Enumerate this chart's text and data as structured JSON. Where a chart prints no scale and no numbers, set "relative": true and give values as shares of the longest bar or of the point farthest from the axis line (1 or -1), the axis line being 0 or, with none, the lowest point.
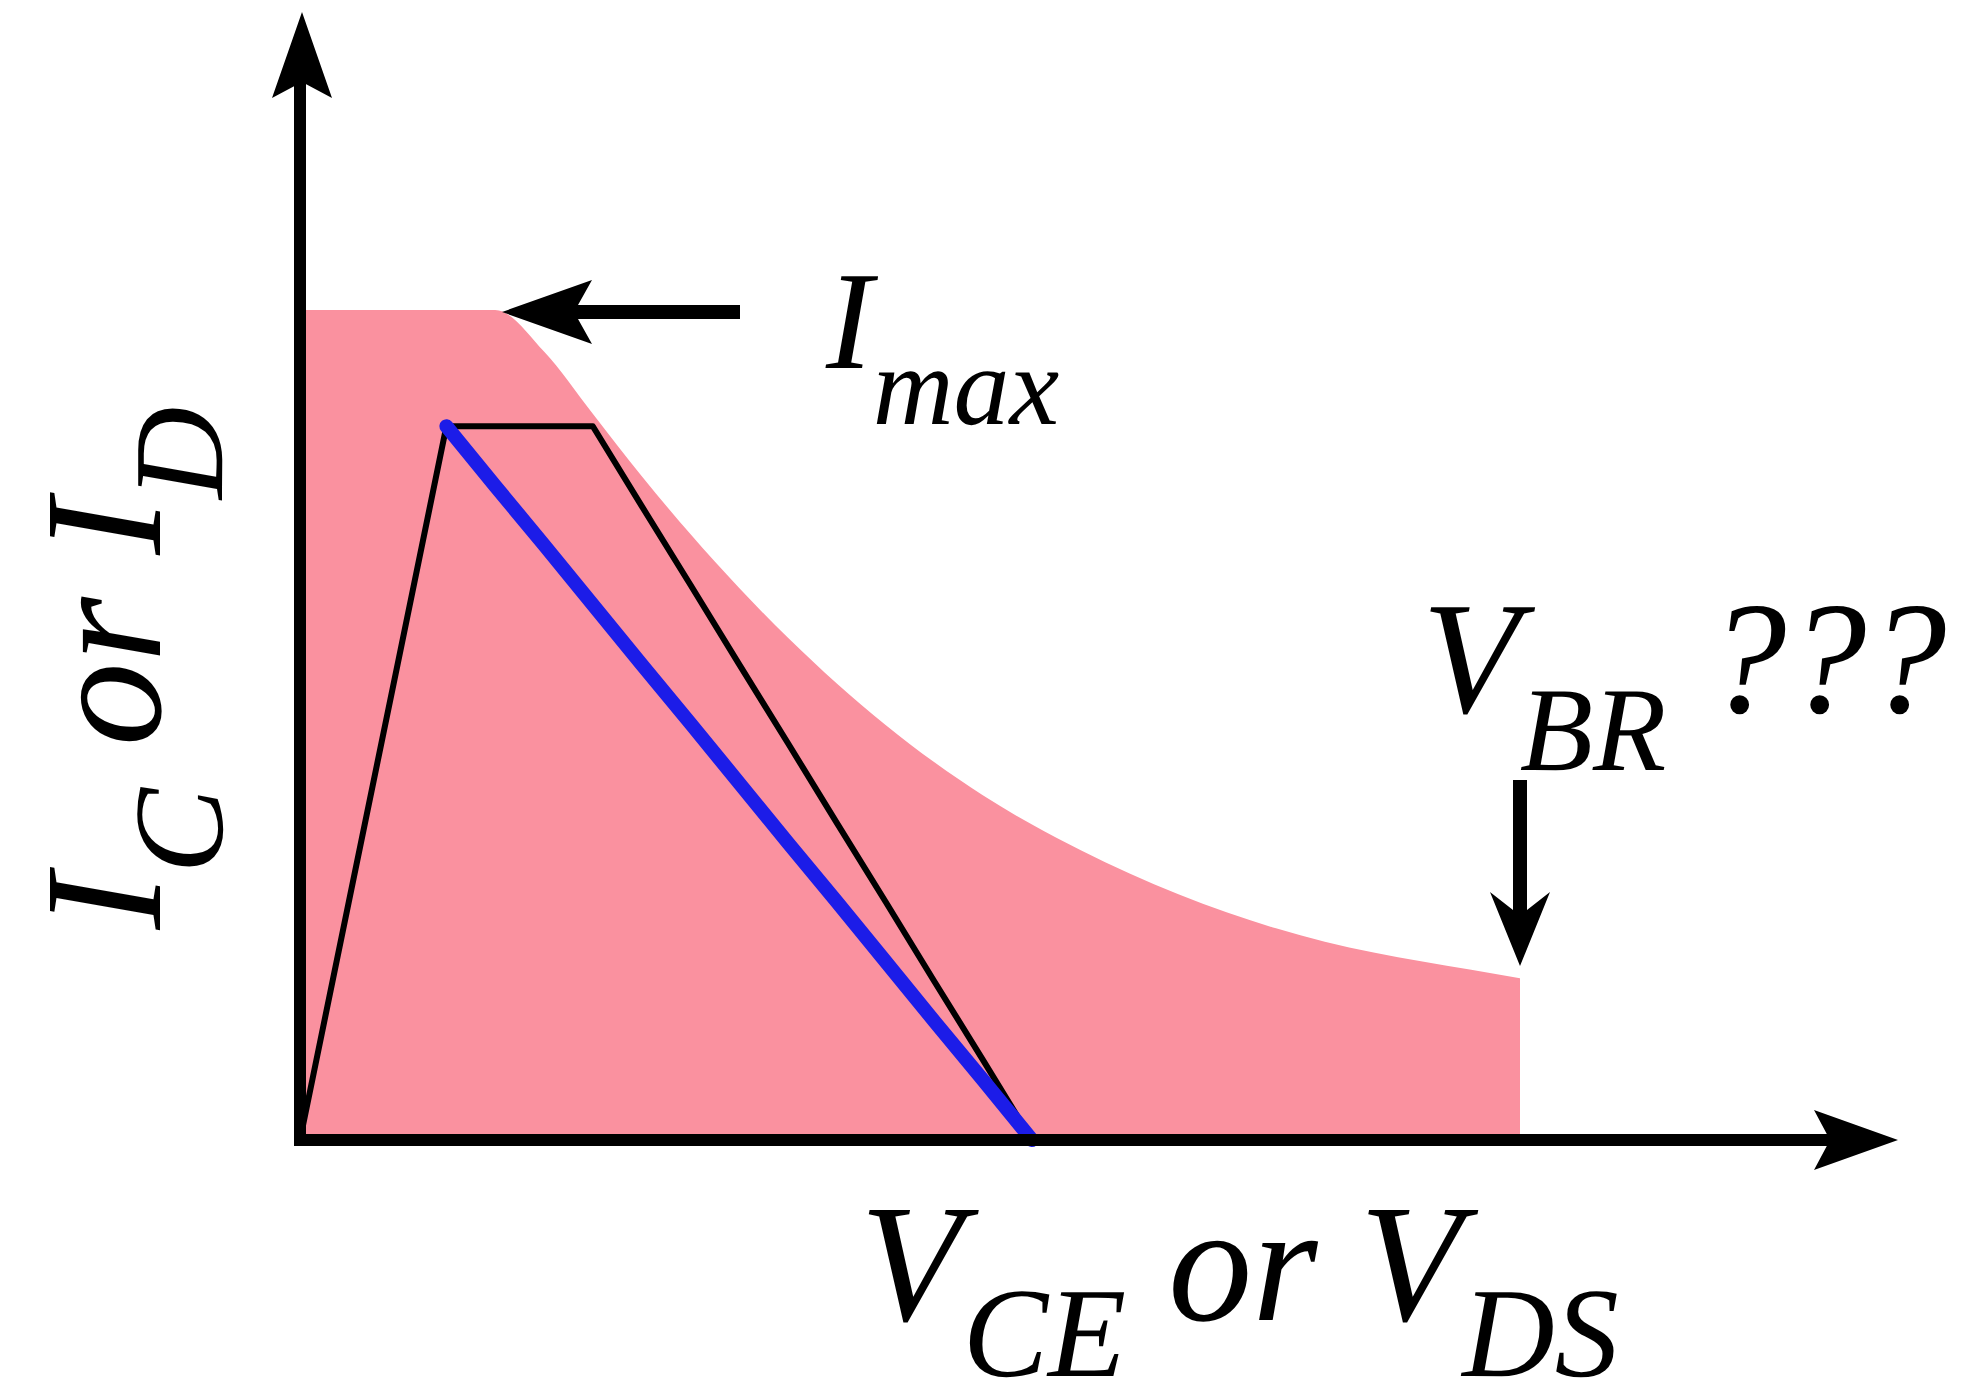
{
  "chart_data": {
    "type": "area",
    "xlabel": "V$_{CE}$ or V$_{DS}$",
    "ylabel": "I$_{C}$ or I$_{D}$",
    "annotations": [
      "I$_{max}$",
      "V$_{BR}$ ???"
    ],
    "categories": [
      null,
      null,
      null,
      null,
      null,
      null,
      null,
      null,
      null,
      null,
      null,
      null,
      null,
      null,
      null,
      null,
      null,
      null,
      null,
      null,
      null,
      null,
      null,
      null,
      null,
      null
    ],
    "relative": true,
    "series": [
      {
        "color": "#fa919f",
        "values": [
          1,
          1,
          1,
          1,
          1,
          0.95,
          0.875,
          0.8,
          0.73,
          0.665,
          0.605,
          0.55,
          0.5,
          0.455,
          0.415,
          0.38,
          0.349,
          0.321,
          0.296,
          0.274,
          0.255,
          0.239,
          0.226,
          0.215,
          0.205,
          0.195
        ]
      },
      {
        "type": "line",
        "color": "#000000",
        "values": [
          0,
          0.287,
          0.573,
          0.86,
          0.86,
          0.86,
          0.86,
          0.764,
          0.669,
          0.573,
          0.478,
          0.382,
          0.287,
          0.191,
          0.096,
          0,
          null,
          null,
          null,
          null,
          null,
          null,
          null,
          null,
          null,
          null
        ]
      },
      {
        "type": "line",
        "color": "#1c1ce8",
        "values": [
          null,
          null,
          null,
          0.86,
          0.788,
          0.717,
          0.645,
          0.573,
          0.502,
          0.43,
          0.358,
          0.287,
          0.215,
          0.143,
          0.072,
          0,
          null,
          null,
          null,
          null,
          null,
          null,
          null,
          null,
          null,
          null
        ]
      }
    ]
  }
}
